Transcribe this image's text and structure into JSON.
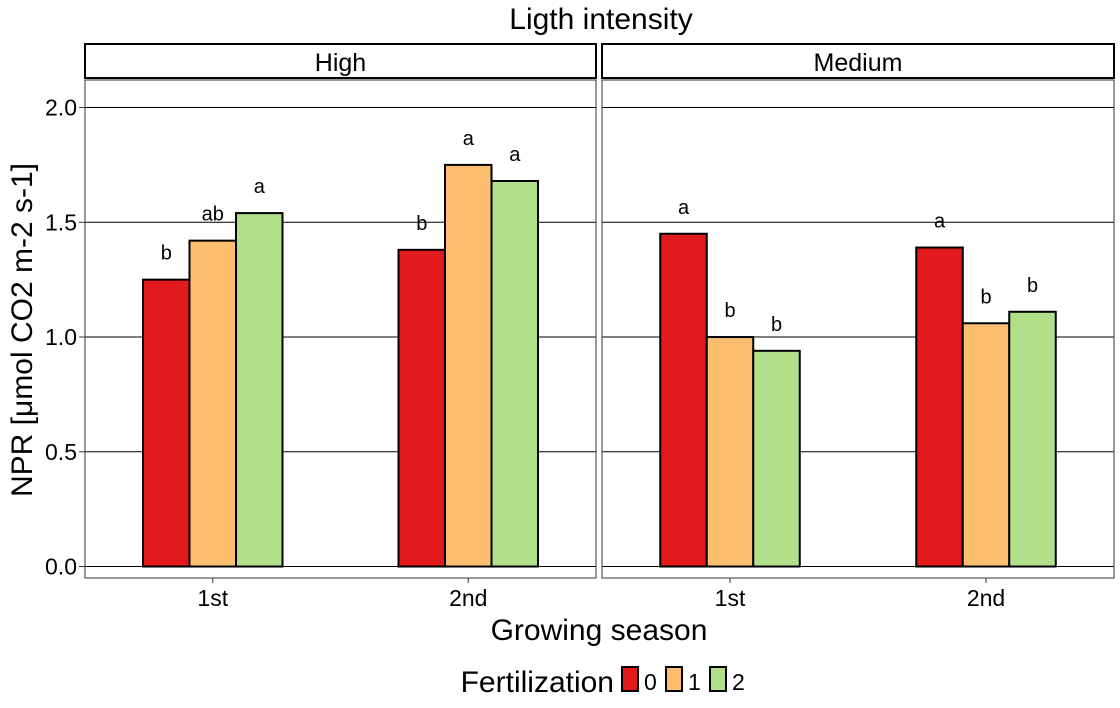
{
  "chart_data": {
    "type": "bar",
    "title": "Ligth intensity",
    "xlabel": "Growing season",
    "ylabel": "NPR [μmol CO2 m-2 s-1]",
    "ylim": [
      -0.05,
      2.12
    ],
    "yticks": [
      0.0,
      0.5,
      1.0,
      1.5,
      2.0
    ],
    "ytick_labels": [
      "0.0",
      "0.5",
      "1.0",
      "1.5",
      "2.0"
    ],
    "grid": "horizontal major lines",
    "categories": [
      "1st",
      "2nd"
    ],
    "facets": [
      {
        "name": "High",
        "series": [
          {
            "name": "0",
            "values": [
              1.25,
              1.38
            ],
            "letters": [
              "b",
              "b"
            ]
          },
          {
            "name": "1",
            "values": [
              1.42,
              1.75
            ],
            "letters": [
              "ab",
              "a"
            ]
          },
          {
            "name": "2",
            "values": [
              1.54,
              1.68
            ],
            "letters": [
              "a",
              "a"
            ]
          }
        ]
      },
      {
        "name": "Medium",
        "series": [
          {
            "name": "0",
            "values": [
              1.45,
              1.39
            ],
            "letters": [
              "a",
              "a"
            ]
          },
          {
            "name": "1",
            "values": [
              1.0,
              1.06
            ],
            "letters": [
              "b",
              "b"
            ]
          },
          {
            "name": "2",
            "values": [
              0.94,
              1.11
            ],
            "letters": [
              "b",
              "b"
            ]
          }
        ]
      }
    ],
    "legend": {
      "title": "Fertilization",
      "position": "bottom",
      "items": [
        {
          "label": "0",
          "color": "#e31a1c"
        },
        {
          "label": "1",
          "color": "#fdbf6f"
        },
        {
          "label": "2",
          "color": "#b2df8a"
        }
      ]
    }
  }
}
